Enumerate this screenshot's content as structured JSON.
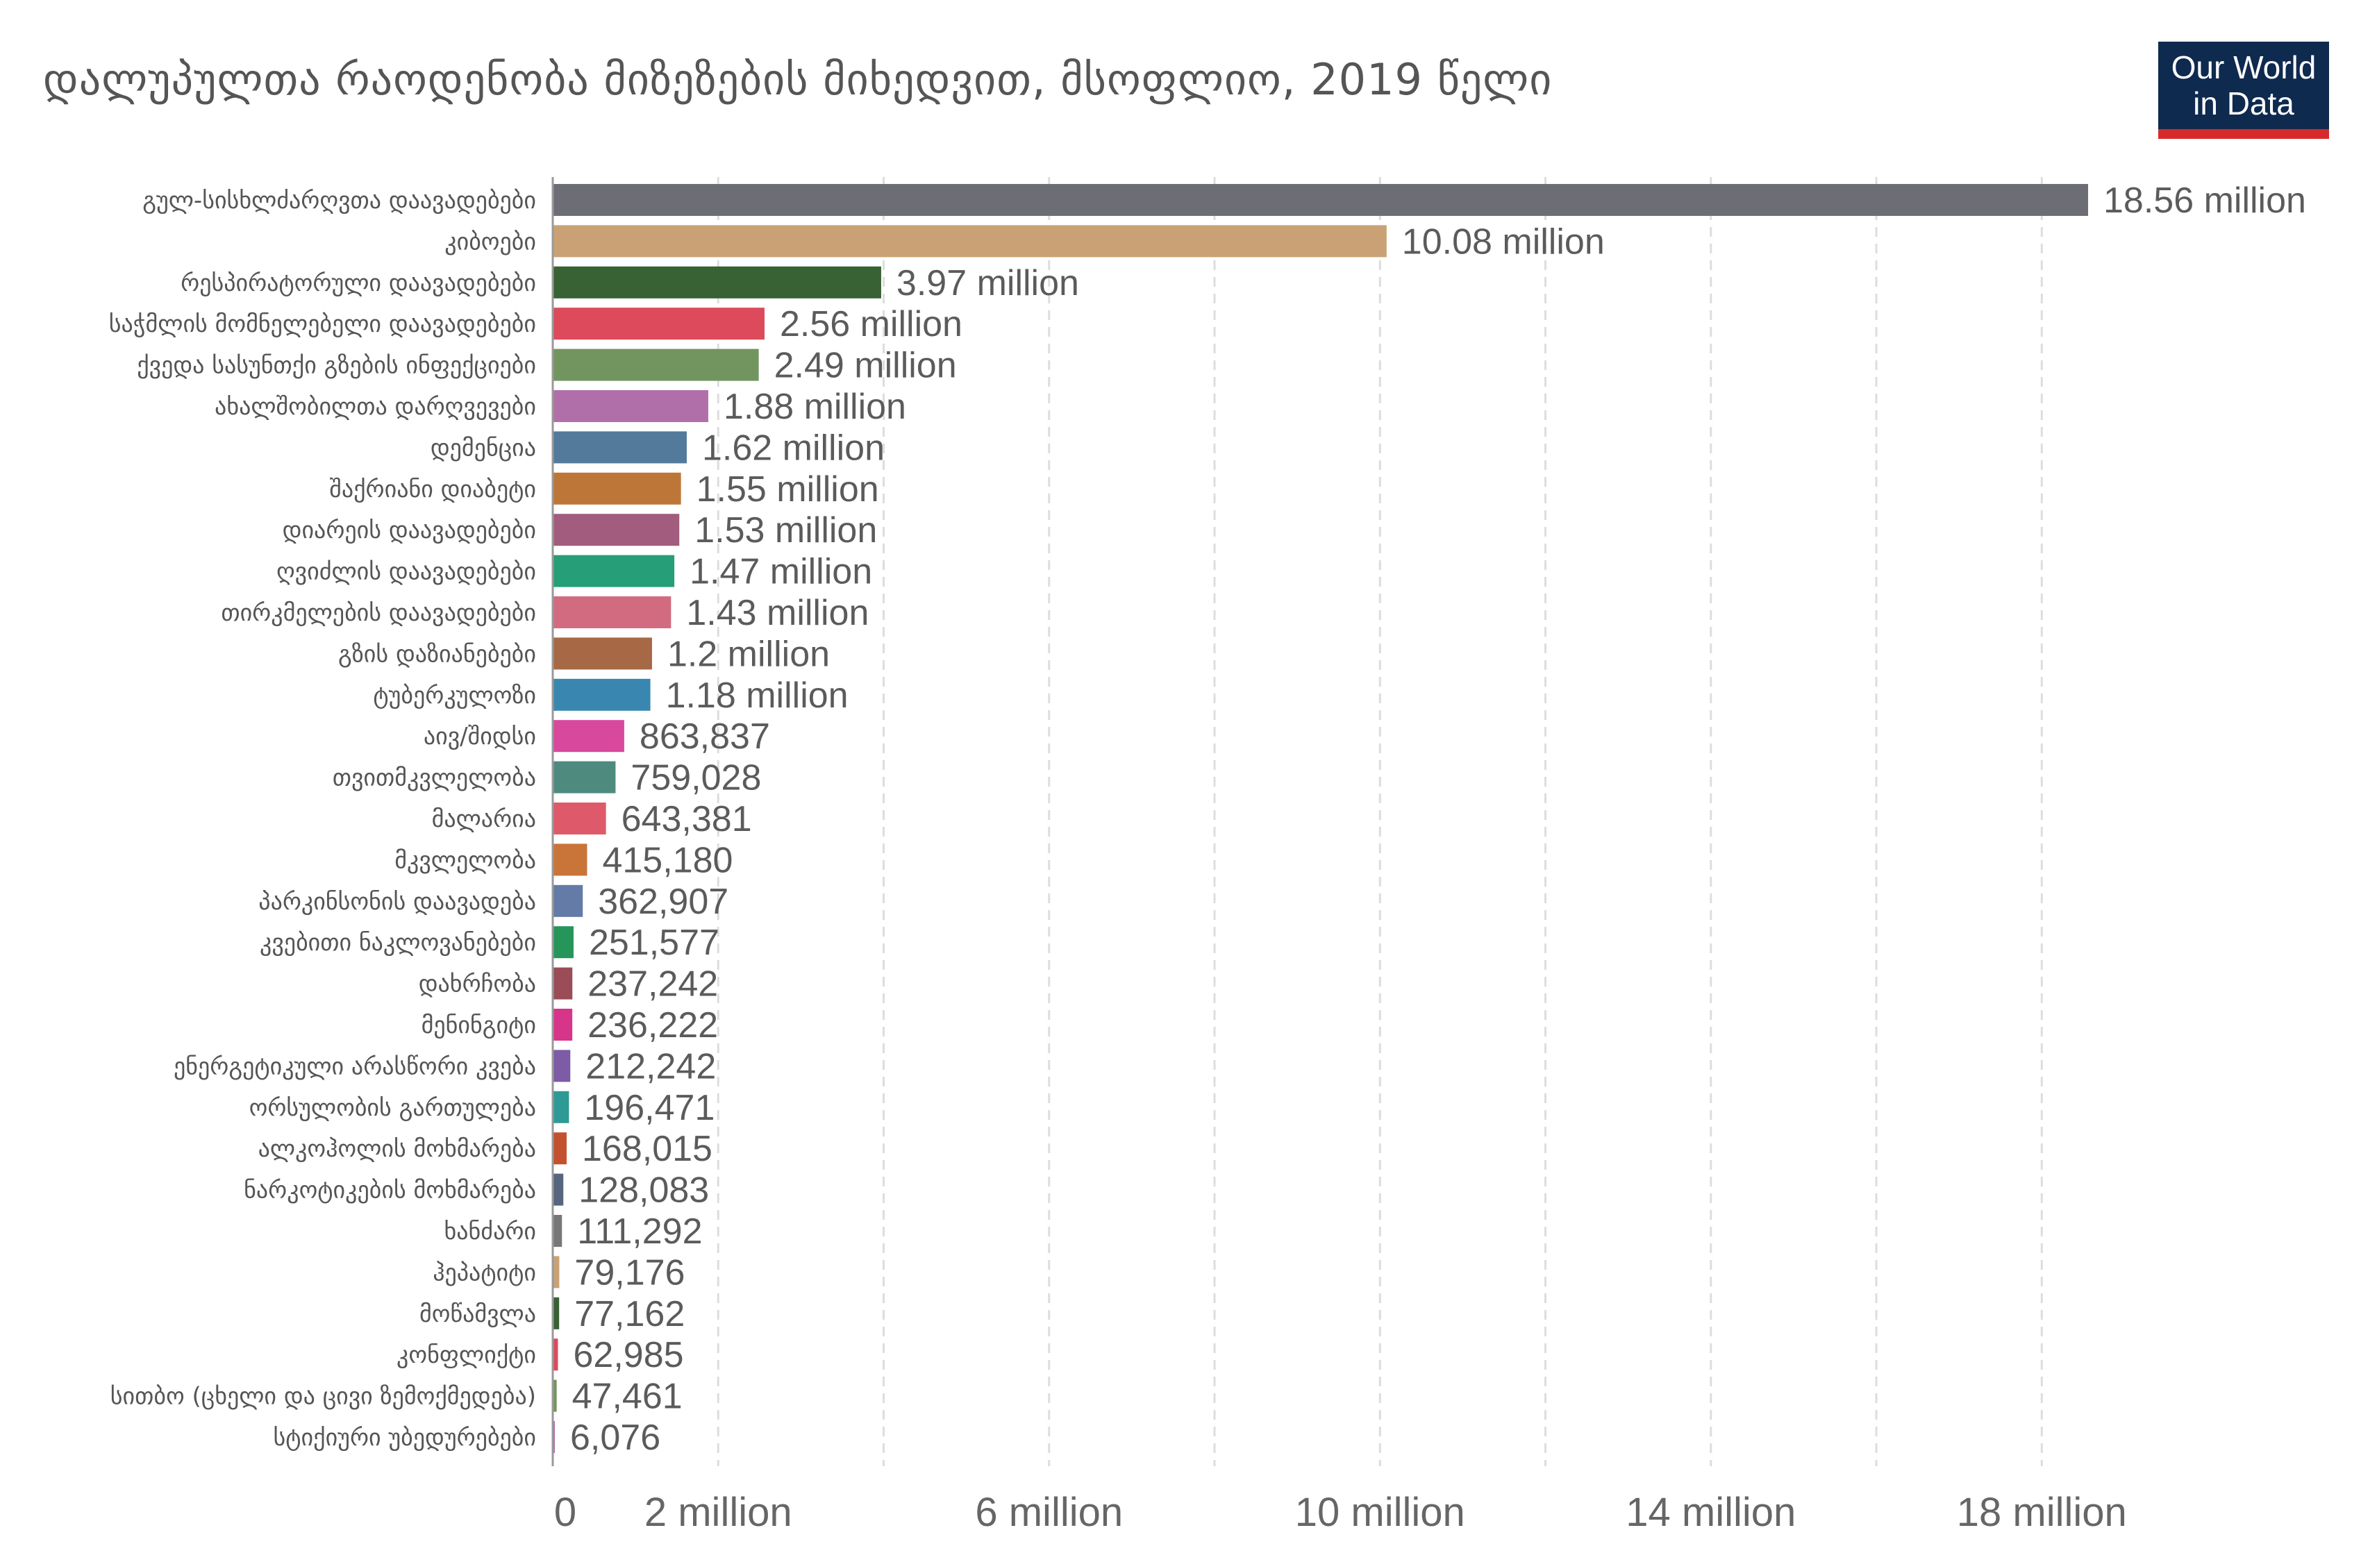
{
  "chart_data": {
    "type": "bar",
    "orientation": "horizontal",
    "title": "დალუპულთა რაოდენობა მიზეზების მიხედვით, მსოფლიო, 2019 წელი",
    "xlabel": "",
    "ylabel": "",
    "xlim": [
      0,
      20000000
    ],
    "grid": "vertical dashed",
    "legend": "none",
    "ticks": [
      {
        "value": 0,
        "label": "0"
      },
      {
        "value": 2000000,
        "label": "2 million"
      },
      {
        "value": 6000000,
        "label": "6 million"
      },
      {
        "value": 10000000,
        "label": "10 million"
      },
      {
        "value": 14000000,
        "label": "14 million"
      },
      {
        "value": 18000000,
        "label": "18 million"
      }
    ],
    "gridlines": [
      2000000,
      4000000,
      6000000,
      8000000,
      10000000,
      12000000,
      14000000,
      16000000,
      18000000
    ],
    "bars": [
      {
        "category": "გულ-სისხლძარღვთა დაავადებები",
        "value": 18560000,
        "label": "18.56 million",
        "color": "#6d6e75"
      },
      {
        "category": "კიბოები",
        "value": 10080000,
        "label": "10.08 million",
        "color": "#c9a174"
      },
      {
        "category": "რესპირატორული დაავადებები",
        "value": 3970000,
        "label": "3.97 million",
        "color": "#386134"
      },
      {
        "category": "საჭმლის მომნელებელი დაავადებები",
        "value": 2560000,
        "label": "2.56 million",
        "color": "#dc4a5c"
      },
      {
        "category": "ქვედა სასუნთქი გზების ინფექციები",
        "value": 2490000,
        "label": "2.49 million",
        "color": "#72955f"
      },
      {
        "category": "ახალშობილთა დარღვევები",
        "value": 1880000,
        "label": "1.88 million",
        "color": "#b16faa"
      },
      {
        "category": "დემენცია",
        "value": 1620000,
        "label": "1.62 million",
        "color": "#537a9b"
      },
      {
        "category": "შაქრიანი დიაბეტი",
        "value": 1550000,
        "label": "1.55 million",
        "color": "#be7638"
      },
      {
        "category": "დიარეის დაავადებები",
        "value": 1530000,
        "label": "1.53 million",
        "color": "#a25c7d"
      },
      {
        "category": "ღვიძლის დაავადებები",
        "value": 1470000,
        "label": "1.47 million",
        "color": "#269e77"
      },
      {
        "category": "თირკმელების დაავადებები",
        "value": 1430000,
        "label": "1.43 million",
        "color": "#d26b80"
      },
      {
        "category": "გზის დაზიანებები",
        "value": 1200000,
        "label": "1.2 million",
        "color": "#a76845"
      },
      {
        "category": "ტუბერკულოზი",
        "value": 1180000,
        "label": "1.18 million",
        "color": "#3987b0"
      },
      {
        "category": "აივ/შიდსი",
        "value": 863837,
        "label": "863,837",
        "color": "#d8489c"
      },
      {
        "category": "თვითმკვლელობა",
        "value": 759028,
        "label": "759,028",
        "color": "#4e8a7e"
      },
      {
        "category": "მალარია",
        "value": 643381,
        "label": "643,381",
        "color": "#de5a6a"
      },
      {
        "category": "მკვლელობა",
        "value": 415180,
        "label": "415,180",
        "color": "#c97438"
      },
      {
        "category": "პარკინსონის დაავადება",
        "value": 362907,
        "label": "362,907",
        "color": "#637ba6"
      },
      {
        "category": "კვებითი ნაკლოვანებები",
        "value": 251577,
        "label": "251,577",
        "color": "#25955a"
      },
      {
        "category": "დახრჩობა",
        "value": 237242,
        "label": "237,242",
        "color": "#9a4d57"
      },
      {
        "category": "მენინგიტი",
        "value": 236222,
        "label": "236,222",
        "color": "#d6358a"
      },
      {
        "category": "ენერგეტიკული არასწორი კვება",
        "value": 212242,
        "label": "212,242",
        "color": "#7d5ba6"
      },
      {
        "category": "ორსულობის გართულება",
        "value": 196471,
        "label": "196,471",
        "color": "#2e9a95"
      },
      {
        "category": "ალკოჰოლის მოხმარება",
        "value": 168015,
        "label": "168,015",
        "color": "#c4512e"
      },
      {
        "category": "ნარკოტიკების მოხმარება",
        "value": 128083,
        "label": "128,083",
        "color": "#58657e"
      },
      {
        "category": "ხანძარი",
        "value": 111292,
        "label": "111,292",
        "color": "#777777"
      },
      {
        "category": "ჰეპატიტი",
        "value": 79176,
        "label": "79,176",
        "color": "#c9a174"
      },
      {
        "category": "მოწამვლა",
        "value": 77162,
        "label": "77,162",
        "color": "#386134"
      },
      {
        "category": "კონფლიქტი",
        "value": 62985,
        "label": "62,985",
        "color": "#dc4a5c"
      },
      {
        "category": "სითბო (ცხელი და ცივი ზემოქმედება)",
        "value": 47461,
        "label": "47,461",
        "color": "#72955f"
      },
      {
        "category": "სტიქიური უბედურებები",
        "value": 6076,
        "label": "6,076",
        "color": "#b16faa"
      }
    ]
  },
  "logo": {
    "line1": "Our World",
    "line2": "in Data",
    "bg_color": "#0f2a4f",
    "accent_color": "#d72b2b"
  }
}
